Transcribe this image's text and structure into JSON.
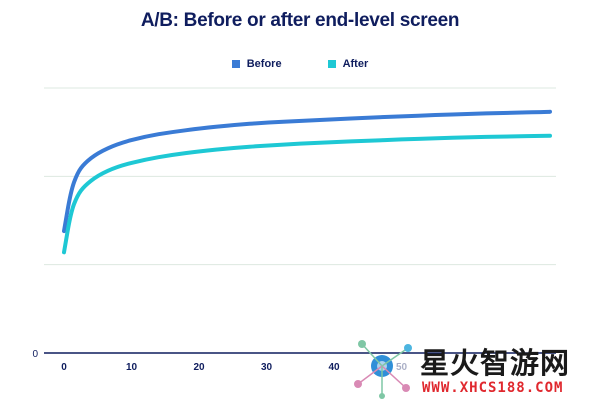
{
  "chart_data": {
    "type": "line",
    "title": "A/B: Before or after end-level screen",
    "xlabel": "",
    "ylabel": "",
    "x_ticks": [
      "0",
      "10",
      "20",
      "30",
      "40",
      "50"
    ],
    "y_ticks": [
      "0"
    ],
    "xlim": [
      0,
      72
    ],
    "ylim": [
      0,
      100
    ],
    "grid": true,
    "legend_position": "top-center",
    "series": [
      {
        "name": "Before",
        "color": "#3a7bd5",
        "x": [
          0,
          1,
          2,
          3,
          5,
          8,
          12,
          16,
          20,
          25,
          30,
          35,
          40,
          45,
          50,
          55,
          60,
          65,
          72
        ],
        "y": [
          46,
          61,
          68,
          71.5,
          75.5,
          79,
          81.7,
          83.4,
          84.7,
          86,
          87,
          87.6,
          88.2,
          88.8,
          89.3,
          89.8,
          90.2,
          90.6,
          91
        ]
      },
      {
        "name": "After",
        "color": "#1ec8d4",
        "x": [
          0,
          1,
          2,
          3,
          5,
          8,
          12,
          16,
          20,
          25,
          30,
          35,
          40,
          45,
          50,
          55,
          60,
          65,
          72
        ],
        "y": [
          38,
          53,
          59.5,
          63,
          67,
          70.5,
          73,
          74.8,
          76.1,
          77.4,
          78.3,
          79,
          79.6,
          80.1,
          80.6,
          81,
          81.4,
          81.7,
          82
        ]
      }
    ]
  },
  "watermark": {
    "text_cn": "星火智游网",
    "text_url": "WWW.XHCS188.COM"
  }
}
